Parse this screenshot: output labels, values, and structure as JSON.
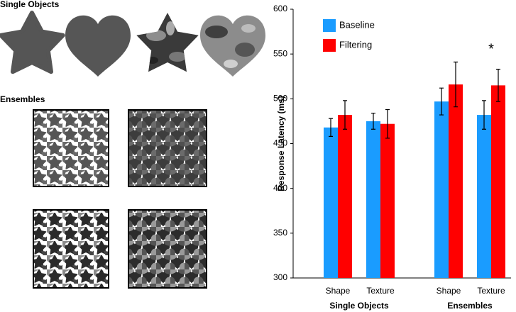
{
  "panel_labels": [
    "Single Objects",
    "Ensembles"
  ],
  "chart_data": {
    "type": "bar",
    "y_label": "Response Latency (ms)",
    "categories": [
      "Shape",
      "Texture",
      "Shape",
      "Texture"
    ],
    "groups": [
      "Single Objects",
      "Ensembles"
    ],
    "series": [
      {
        "name": "Baseline",
        "color": "#1a9cff",
        "values": [
          468,
          475,
          497,
          482
        ],
        "errors": [
          10,
          9,
          15,
          16
        ]
      },
      {
        "name": "Filtering",
        "color": "#ff0000",
        "values": [
          482,
          472,
          516,
          515
        ],
        "errors": [
          16,
          16,
          25,
          18
        ]
      }
    ],
    "annotations": [
      "*"
    ],
    "ylim": [
      300,
      600
    ],
    "yticks": [
      300,
      350,
      400,
      450,
      500,
      550,
      600
    ],
    "grid": false,
    "legend": "top-left"
  }
}
